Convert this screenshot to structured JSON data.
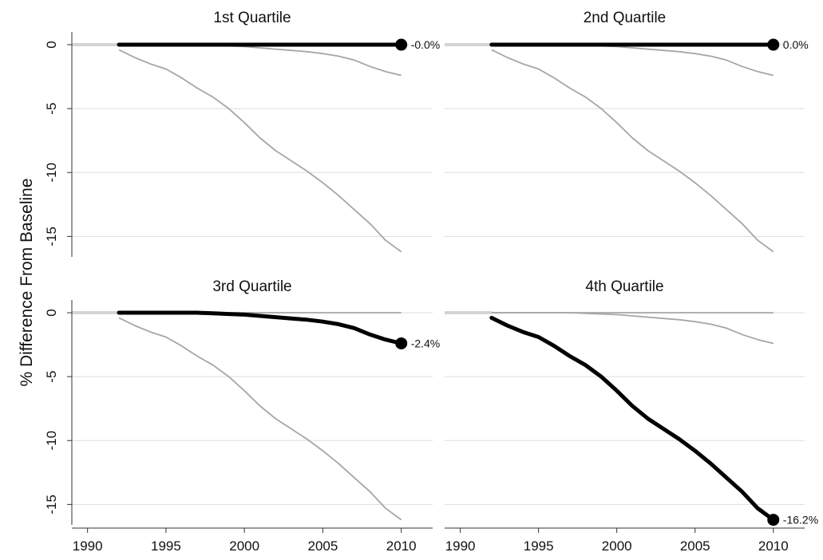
{
  "chart_data": {
    "type": "line",
    "ylabel": "% Difference From Baseline",
    "xlim": [
      1989,
      2012
    ],
    "ylim": [
      -16.6,
      1.0
    ],
    "x_ticks": [
      1990,
      1995,
      2000,
      2005,
      2010
    ],
    "y_ticks": [
      0,
      -5,
      -10,
      -15
    ],
    "grid": true,
    "x": [
      1992,
      1993,
      1994,
      1995,
      1996,
      1997,
      1998,
      1999,
      2000,
      2001,
      2002,
      2003,
      2004,
      2005,
      2006,
      2007,
      2008,
      2009,
      2010
    ],
    "series": [
      {
        "values": [
          0,
          0,
          0,
          0,
          0,
          0,
          0,
          0,
          0,
          0,
          0,
          0,
          0,
          0,
          0,
          0,
          0,
          0,
          0
        ]
      },
      {
        "values": [
          0,
          0,
          0,
          0,
          0,
          0,
          -0.05,
          -0.1,
          -0.15,
          -0.25,
          -0.35,
          -0.45,
          -0.55,
          -0.7,
          -0.9,
          -1.2,
          -1.7,
          -2.1,
          -2.4
        ]
      },
      {
        "values": [
          -0.4,
          -1.0,
          -1.5,
          -1.9,
          -2.6,
          -3.4,
          -4.1,
          -5.0,
          -6.1,
          -7.3,
          -8.3,
          -9.1,
          -9.9,
          -10.8,
          -11.8,
          -12.9,
          -14.0,
          -15.3,
          -16.2
        ]
      }
    ],
    "panels": [
      {
        "title": "1st Quartile",
        "highlight": 0,
        "end_label": "-0.0%"
      },
      {
        "title": "2nd Quartile",
        "highlight": 0,
        "end_label": "0.0%"
      },
      {
        "title": "3rd Quartile",
        "highlight": 1,
        "end_label": "-2.4%"
      },
      {
        "title": "4th Quartile",
        "highlight": 2,
        "end_label": "-16.2%"
      }
    ]
  },
  "colors": {
    "highlight": "#000000",
    "background_series": "#a6a6a6",
    "grid": "#dedede"
  }
}
